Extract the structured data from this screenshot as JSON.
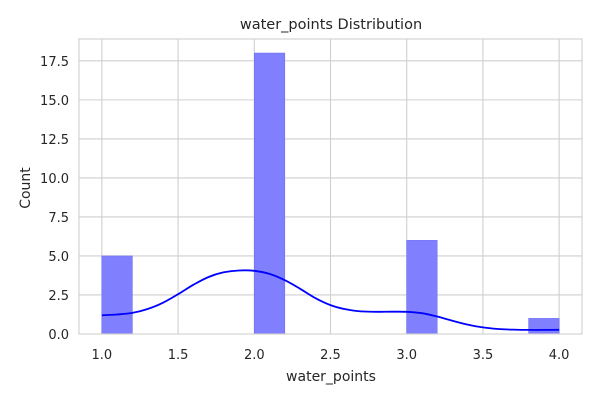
{
  "chart_data": {
    "type": "bar",
    "title": "water_points Distribution",
    "xlabel": "water_points",
    "ylabel": "Count",
    "xlim": [
      0.85,
      4.15
    ],
    "ylim": [
      0,
      18.9
    ],
    "xticks": [
      1.0,
      1.5,
      2.0,
      2.5,
      3.0,
      3.5,
      4.0
    ],
    "xtick_labels": [
      "1.0",
      "1.5",
      "2.0",
      "2.5",
      "3.0",
      "3.5",
      "4.0"
    ],
    "yticks": [
      0,
      2.5,
      5,
      7.5,
      10,
      12.5,
      15,
      17.5
    ],
    "ytick_labels": [
      "0.0",
      "2.5",
      "5.0",
      "7.5",
      "10.0",
      "12.5",
      "15.0",
      "17.5"
    ],
    "grid": true,
    "bins": [
      {
        "x0": 1.0,
        "x1": 1.2,
        "count": 5
      },
      {
        "x0": 2.0,
        "x1": 2.2,
        "count": 18
      },
      {
        "x0": 3.0,
        "x1": 3.2,
        "count": 6
      },
      {
        "x0": 3.8,
        "x1": 4.0,
        "count": 1
      }
    ],
    "kde": {
      "x": [
        1.0,
        1.1,
        1.2,
        1.3,
        1.4,
        1.5,
        1.6,
        1.7,
        1.8,
        1.9,
        2.0,
        2.1,
        2.2,
        2.3,
        2.4,
        2.5,
        2.6,
        2.7,
        2.8,
        2.9,
        3.0,
        3.1,
        3.2,
        3.3,
        3.4,
        3.5,
        3.6,
        3.7,
        3.8,
        3.9,
        4.0
      ],
      "y": [
        1.2,
        1.25,
        1.35,
        1.6,
        2.0,
        2.55,
        3.15,
        3.65,
        3.95,
        4.07,
        4.05,
        3.85,
        3.45,
        2.9,
        2.3,
        1.85,
        1.58,
        1.45,
        1.42,
        1.43,
        1.42,
        1.33,
        1.12,
        0.85,
        0.6,
        0.42,
        0.32,
        0.28,
        0.26,
        0.26,
        0.27
      ]
    },
    "colors": {
      "bar": "#8080ff",
      "bar_edge": "#6f6ff2",
      "kde": "#0000ff"
    }
  }
}
